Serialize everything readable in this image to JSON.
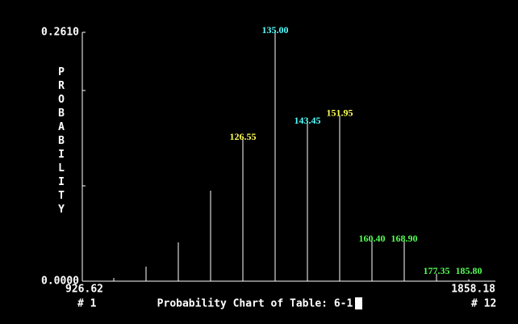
{
  "chart_data": {
    "type": "stem",
    "title": "Probability Chart of Table: 6-1",
    "y_label": "PROBABILITY",
    "ylim": [
      0,
      0.261
    ],
    "yticks": [
      {
        "value": 0,
        "label": "0.0000"
      },
      {
        "value": 0.261,
        "label": "0.2610"
      }
    ],
    "minor_yticks": [
      0.1,
      0.2
    ],
    "x_start": {
      "value": 926.62,
      "label": "926.62"
    },
    "x_end": {
      "value": 1858.18,
      "label": "1858.18"
    },
    "first_index": "# 1",
    "last_index": "# 12",
    "color": "#ffffff",
    "values": [
      0.0034,
      0.0153,
      0.0407,
      0.0949,
      0.149,
      0.261,
      0.166,
      0.174,
      0.042,
      0.042,
      0.008,
      0.002
    ],
    "bar_labels": [
      null,
      null,
      null,
      null,
      "126.55",
      "135.00",
      "143.45",
      "151.95",
      "160.40",
      "168.90",
      "177.35",
      "185.80"
    ],
    "label_colors": [
      null,
      null,
      null,
      null,
      "#ffff55",
      "#55ffff",
      "#55ffff",
      "#ffff55",
      "#55ff55",
      "#55ff55",
      "#55ff55",
      "#55ff55"
    ]
  }
}
